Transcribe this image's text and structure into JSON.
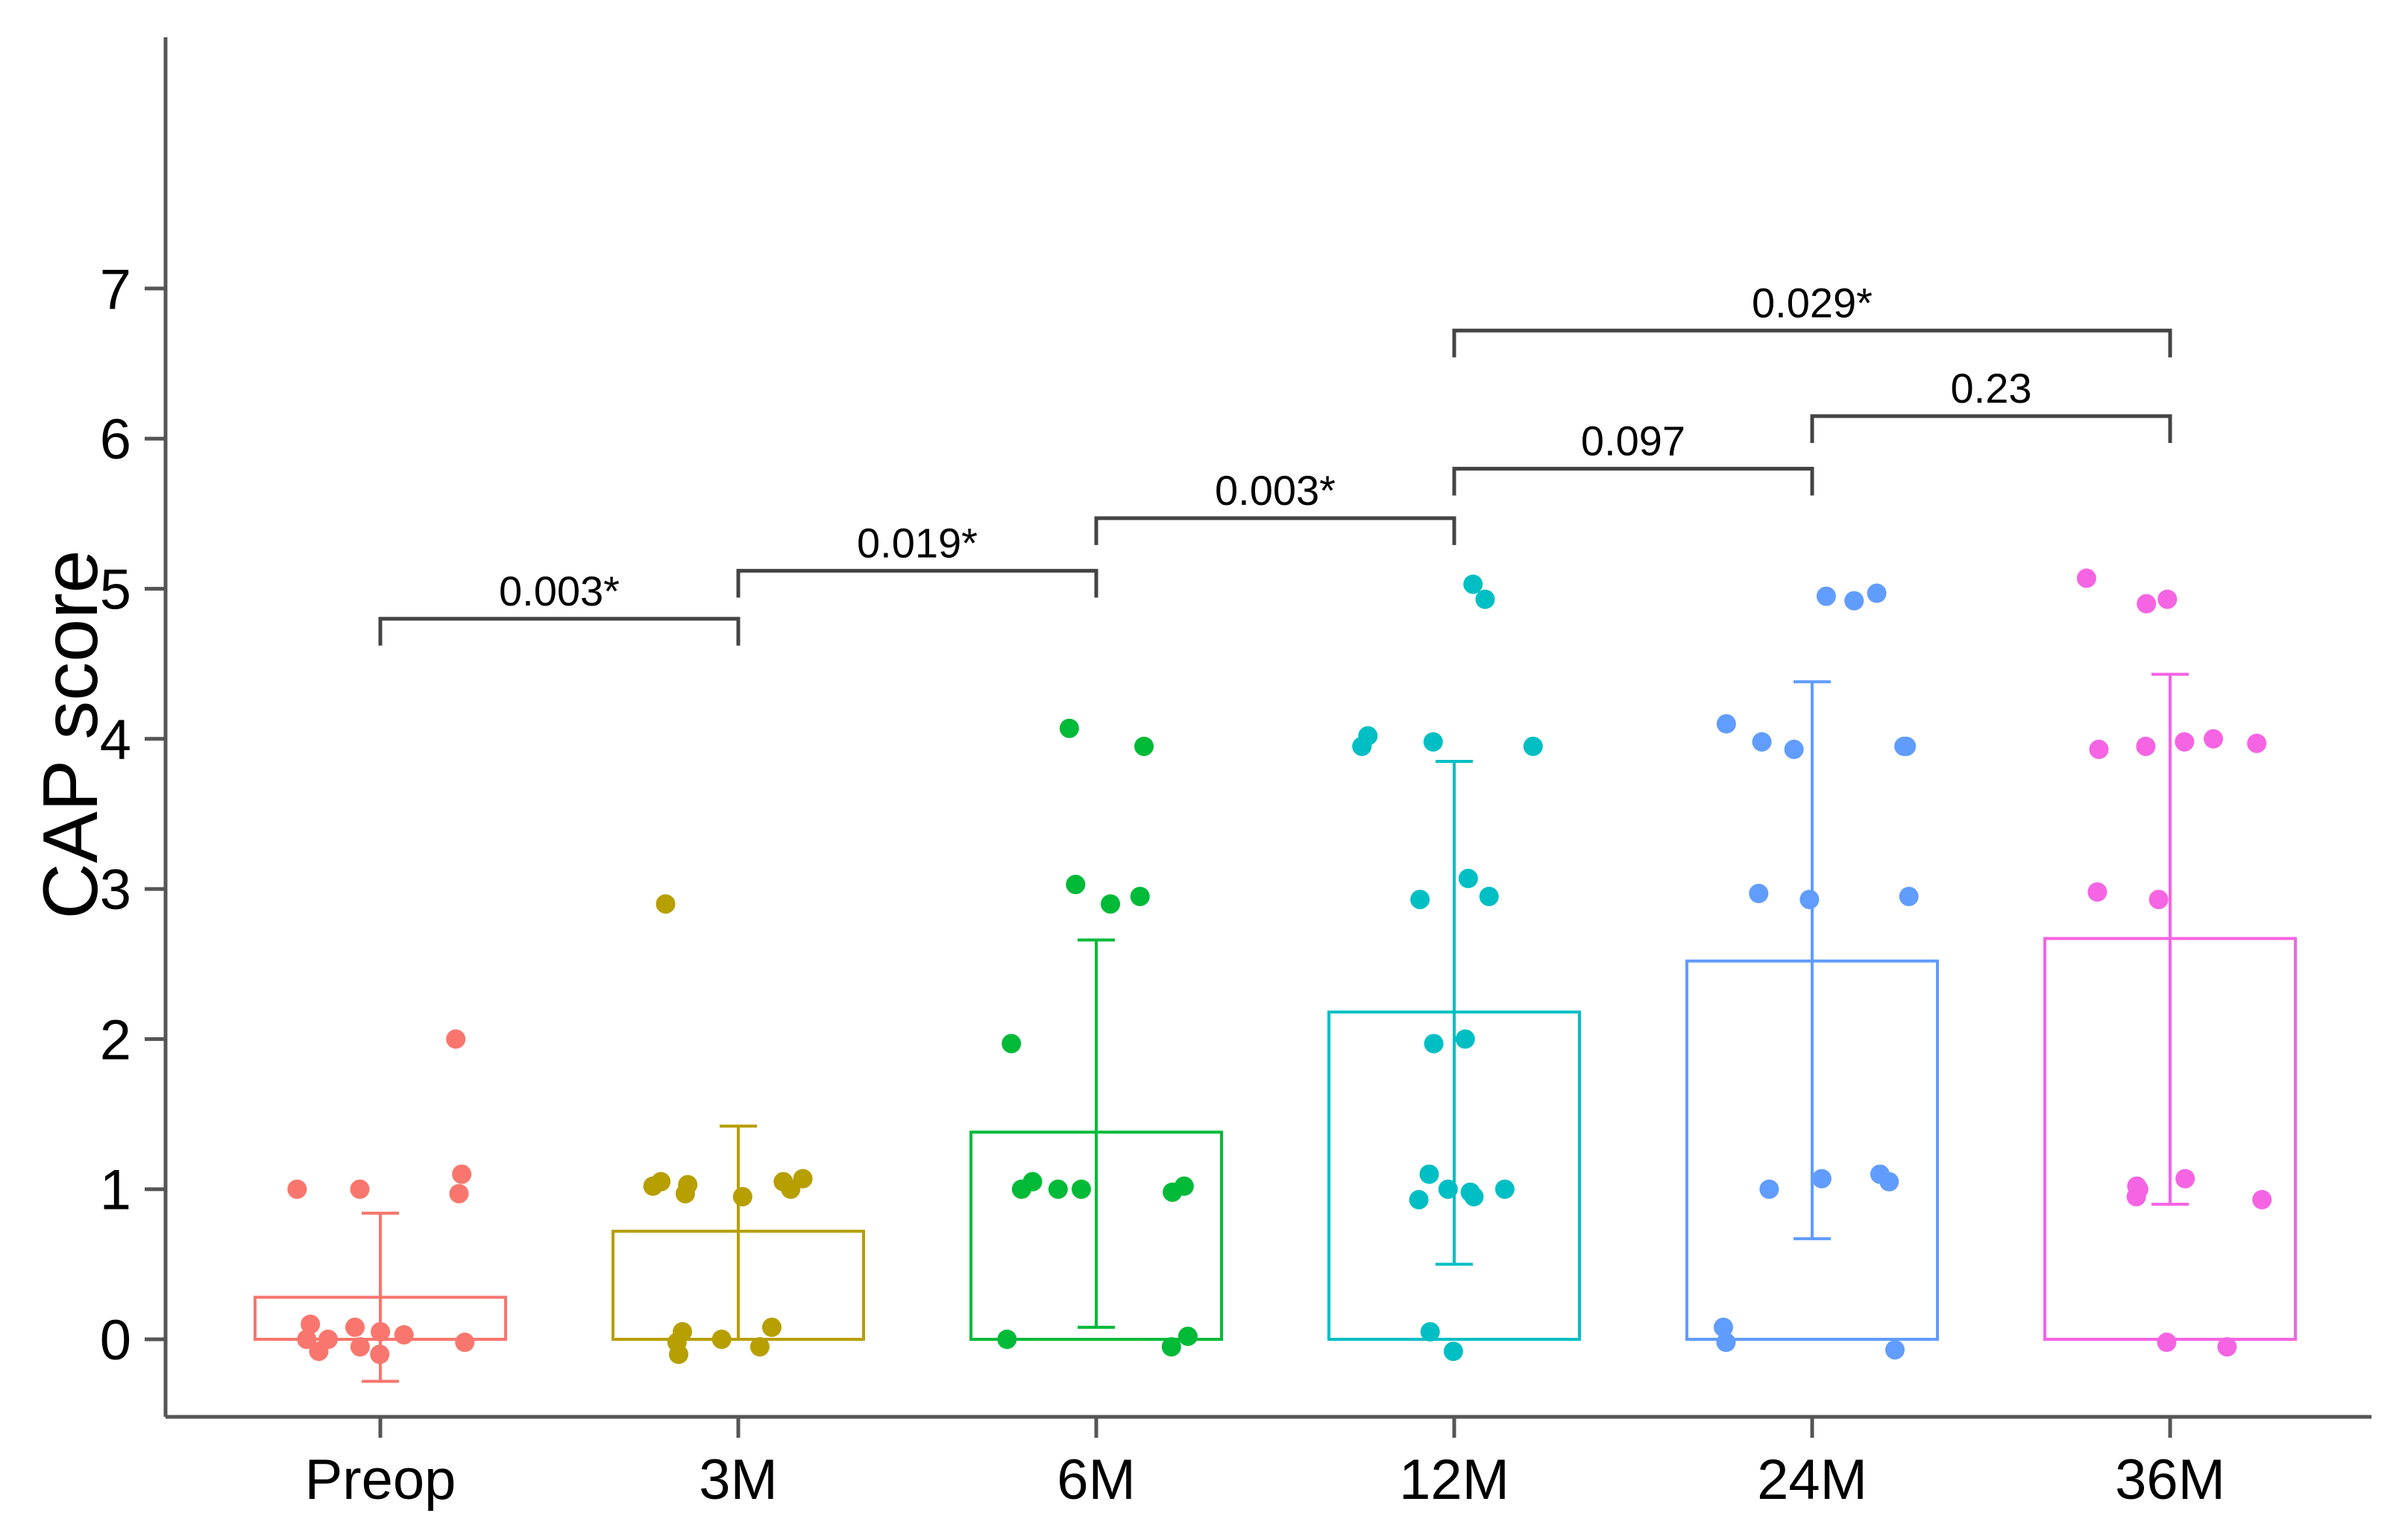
{
  "chart_data": {
    "type": "bar",
    "title": "",
    "xlabel": "",
    "ylabel": "CAP score",
    "ylim": [
      -0.5,
      8.5
    ],
    "yticks": [
      0,
      1,
      2,
      3,
      4,
      5,
      6,
      7
    ],
    "categories": [
      "Preop",
      "3M",
      "6M",
      "12M",
      "24M",
      "36M"
    ],
    "colors": [
      "#F8766D",
      "#B79F00",
      "#00BA38",
      "#00BFC4",
      "#619CFF",
      "#F564E3"
    ],
    "means": [
      0.28,
      0.72,
      1.38,
      2.18,
      2.52,
      2.67
    ],
    "error_low": [
      -0.28,
      0.0,
      0.08,
      0.5,
      0.67,
      0.9
    ],
    "error_high": [
      0.84,
      1.42,
      2.66,
      3.85,
      4.38,
      4.43
    ],
    "points": [
      [
        2.0,
        1.1,
        1.0,
        1.0,
        0.97,
        0.1,
        0.08,
        0.05,
        0.03,
        0.0,
        0.0,
        -0.02,
        -0.05,
        -0.08,
        -0.1
      ],
      [
        2.9,
        1.07,
        1.05,
        1.02,
        1.03,
        1.05,
        1.0,
        0.97,
        0.95,
        0.08,
        0.05,
        0.0,
        -0.02,
        -0.05,
        -0.1
      ],
      [
        4.07,
        3.95,
        3.03,
        2.95,
        2.9,
        1.97,
        1.05,
        1.02,
        1.0,
        1.0,
        1.0,
        0.98,
        0.02,
        0.0,
        -0.05
      ],
      [
        5.03,
        4.93,
        4.02,
        3.98,
        3.95,
        3.95,
        3.07,
        2.95,
        2.93,
        2.0,
        1.97,
        1.1,
        1.0,
        1.0,
        0.98,
        0.95,
        0.93,
        0.05,
        -0.08
      ],
      [
        4.97,
        4.95,
        4.92,
        4.1,
        3.98,
        3.95,
        3.95,
        3.93,
        2.97,
        2.95,
        2.93,
        1.1,
        1.07,
        1.05,
        1.0,
        0.08,
        -0.02,
        -0.07
      ],
      [
        5.07,
        4.93,
        4.9,
        4.0,
        3.98,
        3.97,
        3.95,
        3.93,
        2.98,
        2.93,
        1.07,
        1.02,
        1.0,
        0.95,
        0.93,
        -0.02,
        -0.05
      ]
    ],
    "comparisons": [
      {
        "from": 0,
        "to": 1,
        "y": 4.8,
        "label": "0.003*"
      },
      {
        "from": 1,
        "to": 2,
        "y": 5.12,
        "label": "0.019*"
      },
      {
        "from": 2,
        "to": 3,
        "y": 5.47,
        "label": "0.003*"
      },
      {
        "from": 3,
        "to": 4,
        "y": 5.8,
        "label": "0.097"
      },
      {
        "from": 4,
        "to": 5,
        "y": 6.15,
        "label": "0.23"
      },
      {
        "from": 3,
        "to": 5,
        "y": 6.72,
        "label": "0.029*"
      }
    ]
  }
}
